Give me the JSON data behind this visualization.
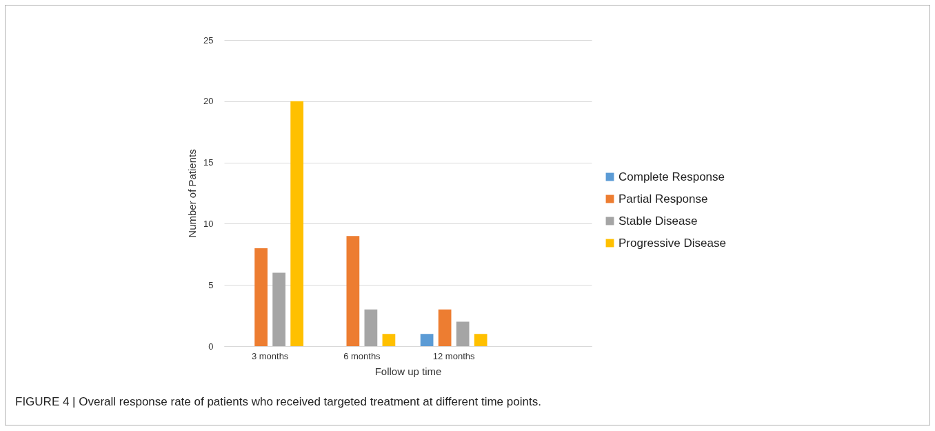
{
  "chart_data": {
    "type": "bar",
    "xlabel": "Follow up time",
    "ylabel": "Number of Patients",
    "categories": [
      "3 months",
      "6 months",
      "12 months",
      null
    ],
    "series": [
      {
        "name": "Complete Response",
        "color": "#5b9bd5",
        "values": [
          0,
          0,
          1,
          null
        ]
      },
      {
        "name": "Partial Response",
        "color": "#ed7d31",
        "values": [
          8,
          9,
          3,
          null
        ]
      },
      {
        "name": "Stable Disease",
        "color": "#a5a5a5",
        "values": [
          6,
          3,
          2,
          null
        ]
      },
      {
        "name": "Progressive Disease",
        "color": "#ffc000",
        "values": [
          20,
          1,
          1,
          null
        ]
      }
    ],
    "ylim": [
      0,
      25
    ],
    "yticks": [
      0,
      5,
      10,
      15,
      20,
      25
    ],
    "grid": "y",
    "legend": "right",
    "annotations": [
      "FIGURE 4 | Overall response rate of patients who received targeted treatment at different time points."
    ]
  }
}
